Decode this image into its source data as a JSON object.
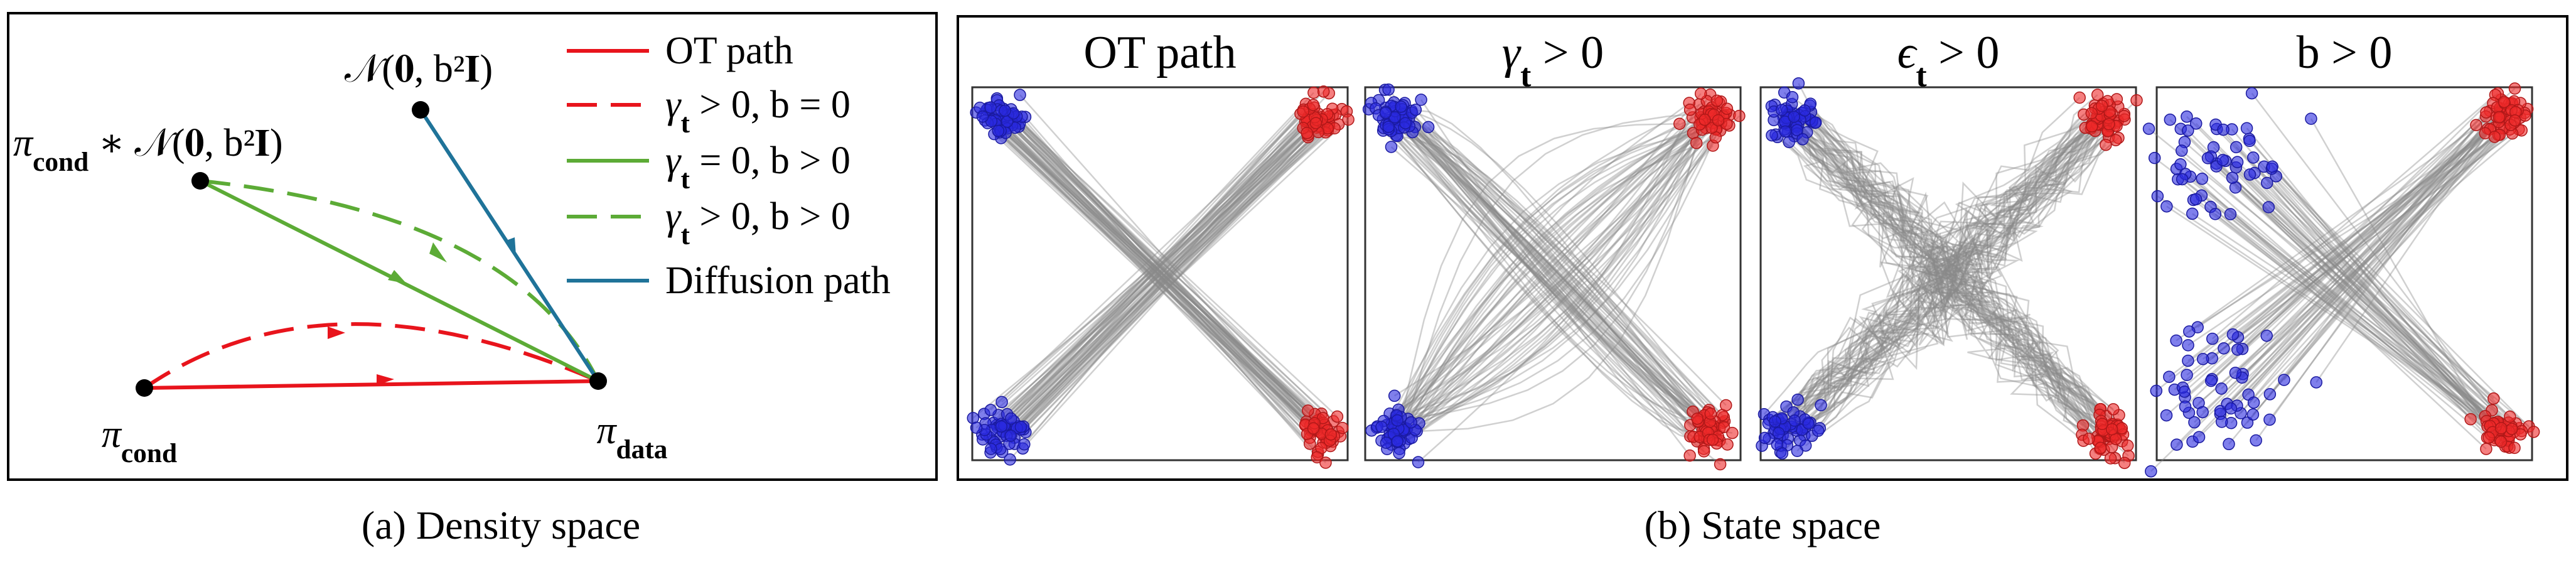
{
  "panel_a": {
    "labels": {
      "noise": {
        "text": "𝒩(𝟎, b²𝐈)"
      },
      "cond_noise": {
        "symbol": "π",
        "sub": "cond",
        "rest": " ∗ 𝒩(𝟎, b²𝐈)"
      },
      "cond": {
        "symbol": "π",
        "sub": "cond"
      },
      "data": {
        "symbol": "π",
        "sub": "data"
      }
    },
    "legend": [
      {
        "text": "OT path"
      },
      {
        "symbol": "γ",
        "sub": "t",
        "rest": " > 0, b = 0"
      },
      {
        "symbol": "γ",
        "sub": "t",
        "rest": " = 0, b > 0"
      },
      {
        "symbol": "γ",
        "sub": "t",
        "rest": " > 0, b > 0"
      },
      {
        "text": "Diffusion path"
      }
    ],
    "caption": "(a) Density space"
  },
  "panel_b": {
    "titles": [
      {
        "text": "OT path"
      },
      {
        "symbol": "γ",
        "sub": "t",
        "rest": " > 0"
      },
      {
        "symbol": "ϵ",
        "sub": "t",
        "rest": " > 0"
      },
      {
        "text": "b > 0"
      }
    ],
    "caption": "(b) State space"
  }
}
